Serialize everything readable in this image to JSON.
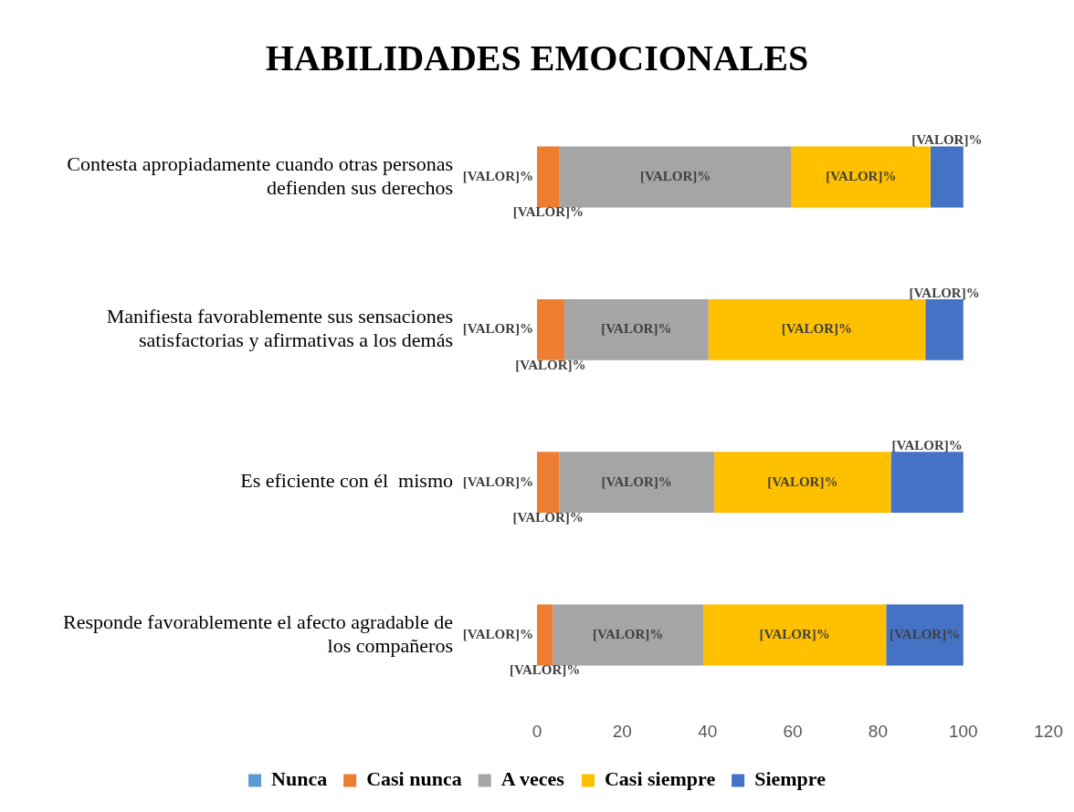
{
  "chart_data": {
    "type": "bar",
    "orientation": "horizontal",
    "stacked": true,
    "title": "HABILIDADES EMOCIONALES",
    "categories": [
      "Contesta apropiadamente cuando otras personas defienden sus derechos",
      "Manifiesta favorablemente sus sensaciones satisfactorias y afirmativas a los demás",
      "Es eficiente con él  mismo",
      "Responde favorablemente el afecto agradable de los compañeros"
    ],
    "series": [
      {
        "name": "Nunca",
        "color": "#5b9bd5",
        "values": [
          0,
          0,
          0,
          0
        ],
        "value_labels": [
          "[VALOR]%",
          "[VALOR]%",
          "[VALOR]%",
          "[VALOR]%"
        ]
      },
      {
        "name": "Casi nunca",
        "color": "#ed7d31",
        "values": [
          5.3,
          6.4,
          5.2,
          3.7
        ],
        "value_labels": [
          "[VALOR]%",
          "[VALOR]%",
          "[VALOR]%",
          "[VALOR]%"
        ]
      },
      {
        "name": "A veces",
        "color": "#a5a5a5",
        "values": [
          54.4,
          33.8,
          36.4,
          35.3
        ],
        "value_labels": [
          "[VALOR]%",
          "[VALOR]%",
          "[VALOR]%",
          "[VALOR]%"
        ]
      },
      {
        "name": "Casi siempre",
        "color": "#ffc000",
        "values": [
          32.6,
          50.9,
          41.4,
          42.9
        ],
        "value_labels": [
          "[VALOR]%",
          "[VALOR]%",
          "[VALOR]%",
          "[VALOR]%"
        ]
      },
      {
        "name": "Siempre",
        "color": "#4472c4",
        "values": [
          7.7,
          8.9,
          17.0,
          18.1
        ],
        "value_labels": [
          "[VALOR]%",
          "[VALOR]%",
          "[VALOR]%",
          "[VALOR]%"
        ]
      }
    ],
    "xlim": [
      0,
      120
    ],
    "xticks": [
      0,
      20,
      40,
      60,
      80,
      100,
      120
    ],
    "grid": false,
    "legend": "bottom"
  }
}
